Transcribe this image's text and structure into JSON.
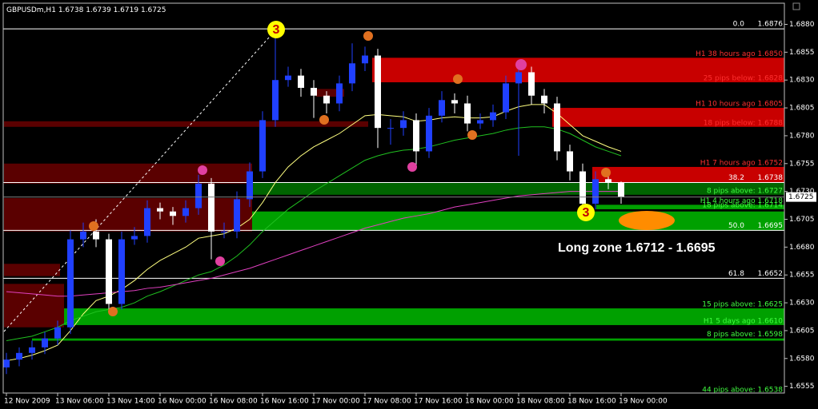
{
  "chart_data": {
    "type": "candlestick",
    "title": "GBPUSDm,H1",
    "categories": [
      "12 Nov 2009",
      null,
      null,
      null,
      "13 Nov 06:00",
      null,
      null,
      null,
      "13 Nov 14:00",
      null,
      null,
      null,
      "16 Nov 00:00",
      null,
      null,
      null,
      "16 Nov 08:00",
      null,
      null,
      null,
      "16 Nov 16:00",
      null,
      null,
      null,
      "17 Nov 00:00",
      null,
      null,
      null,
      "17 Nov 08:00",
      null,
      null,
      null,
      "17 Nov 16:00",
      null,
      null,
      null,
      "18 Nov 00:00",
      null,
      null,
      null,
      "18 Nov 08:00",
      null,
      null,
      null,
      "18 Nov 16:00",
      null,
      null,
      null,
      "19 Nov 00:00"
    ],
    "open": [
      1.6572,
      1.6579,
      1.6585,
      1.659,
      1.6598,
      1.6608,
      1.6687,
      1.6694,
      1.6687,
      1.6629,
      1.6687,
      1.669,
      1.6715,
      1.6712,
      1.6708,
      1.6715,
      1.6737,
      1.6694,
      1.6694,
      1.6723,
      1.6748,
      1.6794,
      1.683,
      1.6834,
      1.6823,
      1.6816,
      1.6809,
      1.6827,
      1.6845,
      1.6852,
      1.6787,
      1.6787,
      1.6794,
      1.6766,
      1.6798,
      1.6812,
      1.6809,
      1.6791,
      1.6794,
      1.6801,
      1.6827,
      1.6837,
      1.6816,
      1.6809,
      1.6766,
      1.6748,
      1.6719,
      1.6741,
      1.6738
    ],
    "high": [
      1.6585,
      1.659,
      1.6596,
      1.6604,
      1.6614,
      1.6695,
      1.6702,
      1.6705,
      1.6692,
      1.6694,
      1.6698,
      1.6722,
      1.672,
      1.6716,
      1.6722,
      1.6745,
      1.6742,
      1.6702,
      1.673,
      1.6756,
      1.6802,
      1.687,
      1.6842,
      1.684,
      1.683,
      1.682,
      1.6834,
      1.6863,
      1.686,
      1.6858,
      1.6795,
      1.6802,
      1.68,
      1.6805,
      1.682,
      1.6818,
      1.6816,
      1.68,
      1.6808,
      1.6834,
      1.6845,
      1.6842,
      1.6822,
      1.6815,
      1.6772,
      1.6755,
      1.6748,
      1.6746,
      1.6739
    ],
    "low": [
      1.6566,
      1.6573,
      1.6579,
      1.6584,
      1.6592,
      1.6602,
      1.668,
      1.668,
      1.6622,
      1.6624,
      1.6682,
      1.6684,
      1.6705,
      1.67,
      1.6702,
      1.6709,
      1.6669,
      1.6688,
      1.6688,
      1.6716,
      1.6742,
      1.6788,
      1.6824,
      1.6815,
      1.6796,
      1.68,
      1.6802,
      1.682,
      1.6838,
      1.6769,
      1.6772,
      1.678,
      1.6751,
      1.676,
      1.6792,
      1.68,
      1.6784,
      1.6786,
      1.6788,
      1.6795,
      1.6762,
      1.6808,
      1.68,
      1.6758,
      1.674,
      1.6712,
      1.6714,
      1.6732,
      1.6719
    ],
    "close": [
      1.6579,
      1.6585,
      1.659,
      1.6598,
      1.6608,
      1.6687,
      1.6694,
      1.6687,
      1.6629,
      1.6687,
      1.669,
      1.6715,
      1.6712,
      1.6708,
      1.6715,
      1.6737,
      1.6694,
      1.6694,
      1.6723,
      1.6748,
      1.6794,
      1.683,
      1.6834,
      1.6823,
      1.6816,
      1.6809,
      1.6827,
      1.6845,
      1.6852,
      1.6787,
      1.6787,
      1.6794,
      1.6766,
      1.6798,
      1.6812,
      1.6809,
      1.6791,
      1.6794,
      1.6801,
      1.6827,
      1.6837,
      1.6816,
      1.6809,
      1.6766,
      1.6748,
      1.6719,
      1.6741,
      1.6738,
      1.6725
    ],
    "up_color": "#2040ff",
    "down_color": "#ffffff",
    "moving_averages": [
      {
        "color": "#ffff80",
        "values": [
          1.6578,
          1.658,
          1.6583,
          1.6587,
          1.6592,
          1.6605,
          1.662,
          1.6632,
          1.6636,
          1.6642,
          1.665,
          1.666,
          1.6668,
          1.6674,
          1.668,
          1.6688,
          1.669,
          1.6692,
          1.6697,
          1.6705,
          1.672,
          1.6738,
          1.6752,
          1.6762,
          1.677,
          1.6776,
          1.6782,
          1.679,
          1.6798,
          1.6799,
          1.6798,
          1.6797,
          1.6793,
          1.6794,
          1.6796,
          1.6797,
          1.6796,
          1.6796,
          1.6797,
          1.6802,
          1.6806,
          1.6808,
          1.6808,
          1.68,
          1.679,
          1.678,
          1.6775,
          1.677,
          1.6766
        ]
      },
      {
        "color": "#20c020",
        "values": [
          1.6596,
          1.6598,
          1.66,
          1.6604,
          1.6608,
          1.6614,
          1.6618,
          1.6622,
          1.6624,
          1.6626,
          1.663,
          1.6636,
          1.664,
          1.6645,
          1.665,
          1.6655,
          1.6658,
          1.6664,
          1.6672,
          1.6682,
          1.6694,
          1.6704,
          1.6714,
          1.6722,
          1.673,
          1.6737,
          1.6744,
          1.6751,
          1.6758,
          1.6762,
          1.6765,
          1.6767,
          1.6768,
          1.677,
          1.6773,
          1.6776,
          1.6778,
          1.678,
          1.6782,
          1.6785,
          1.6787,
          1.6788,
          1.6788,
          1.6786,
          1.6782,
          1.6776,
          1.677,
          1.6766,
          1.6762
        ]
      },
      {
        "color": "#e040c0",
        "values": [
          1.664,
          1.6639,
          1.6638,
          1.6637,
          1.6636,
          1.6636,
          1.6637,
          1.6638,
          1.6639,
          1.664,
          1.6641,
          1.6643,
          1.6644,
          1.6646,
          1.6648,
          1.665,
          1.6652,
          1.6655,
          1.6658,
          1.6661,
          1.6665,
          1.6669,
          1.6673,
          1.6677,
          1.6681,
          1.6685,
          1.6689,
          1.6693,
          1.6697,
          1.67,
          1.6703,
          1.6706,
          1.6708,
          1.671,
          1.6713,
          1.6716,
          1.6718,
          1.672,
          1.6722,
          1.6724,
          1.6726,
          1.6727,
          1.6728,
          1.6729,
          1.673,
          1.673,
          1.673,
          1.673,
          1.673
        ]
      }
    ],
    "ylim": [
      1.6549,
      1.6899
    ],
    "yticks": [
      {
        "value": 1.688,
        "label": "1.6880"
      },
      1.6855,
      {
        "value": 1.683,
        "label": "1.6830"
      },
      1.6805,
      {
        "value": 1.678,
        "label": "1.6780"
      },
      1.6755,
      {
        "value": 1.673,
        "label": "1.6730"
      },
      1.6705,
      {
        "value": 1.668,
        "label": "1.6680"
      },
      1.6655,
      {
        "value": 1.663,
        "label": "1.6630"
      },
      1.6605,
      {
        "value": 1.658,
        "label": "1.6580"
      },
      1.6555
    ],
    "grid": false,
    "levels": [
      {
        "label": "0.0",
        "value": 1.6876
      },
      {
        "label": "38.2",
        "value": 1.6738
      },
      {
        "label": "50.0",
        "value": 1.6695
      },
      {
        "label": "61.8",
        "value": 1.6652
      }
    ],
    "zones": [
      {
        "high": 1.685,
        "low": 1.6828,
        "color": "#c80000",
        "text_color": "#ff3030",
        "high_label": "H1 38 hours ago 1.6850",
        "low_label": "25 pips below: 1.6828"
      },
      {
        "high": 1.6805,
        "low": 1.6788,
        "color": "#c80000",
        "text_color": "#ff3030",
        "high_label": "H1 10 hours ago 1.6805",
        "low_label": "18 pips below: 1.6788"
      },
      {
        "high": 1.6752,
        "low": 1.6738,
        "color": "#c80000",
        "text_color": "#ff3030",
        "high_label": "H1 7 hours ago 1.6752"
      },
      {
        "high": 1.6738,
        "low": 1.6727,
        "color": "#006400",
        "text_color": "#40ff40",
        "low_label": "8 pips above: 1.6727"
      },
      {
        "high": 1.6718,
        "low": 1.6714,
        "color": "#00a000",
        "text_color": "#40ff40",
        "high_label": "H1 4 hours ago 1.6718",
        "low_label": "18 pips above: 1.6714"
      },
      {
        "high": 1.6712,
        "low": 1.6695,
        "color": "#00a000"
      },
      {
        "high": 1.6625,
        "low": 1.661,
        "color": "#00a000",
        "text_color": "#40ff40",
        "high_label": "15 pips above: 1.6625",
        "low_label": "H1 5 days ago 1.6610"
      },
      {
        "high": 1.6598,
        "low": 1.6596,
        "color": "#00a000",
        "text_color": "#40ff40",
        "high_label": "8 pips above: 1.6598"
      },
      {
        "high": 1.6793,
        "low": 1.6788,
        "color": "#5a0000"
      },
      {
        "high": 1.6755,
        "low": 1.6737,
        "color": "#5a0000"
      },
      {
        "high": 1.6724,
        "low": 1.6694,
        "color": "#5a0000"
      },
      {
        "high": 1.6665,
        "low": 1.6654,
        "color": "#5a0000"
      },
      {
        "high": 1.6647,
        "low": 1.6608,
        "color": "#5a0000"
      },
      {
        "high": 1.6822,
        "low": 1.6815,
        "color": "#5a0000"
      }
    ],
    "annotations": {
      "wave_top": "3",
      "wave_bottom": "3",
      "long_zone": "Long zone 1.6712 - 1.6695",
      "bottom_note": "44 pips above: 1.6538"
    }
  }
}
